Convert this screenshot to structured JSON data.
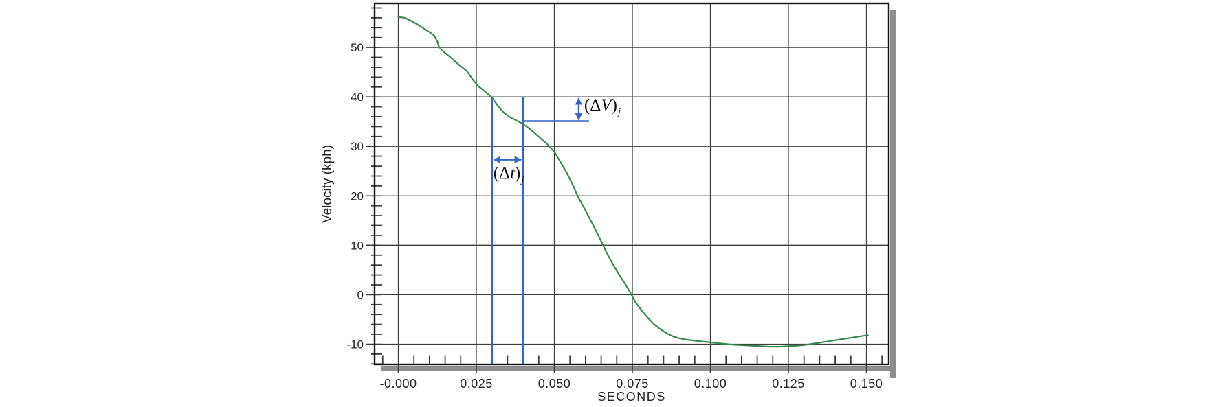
{
  "chart_data": {
    "type": "line",
    "title": "",
    "xlabel": "SECONDS",
    "ylabel": "Velocity (kph)",
    "x_tick_labels": [
      "-0.000",
      "0.025",
      "0.050",
      "0.075",
      "0.100",
      "0.125",
      "0.150"
    ],
    "x_tick_values": [
      0,
      0.025,
      0.05,
      0.075,
      0.1,
      0.125,
      0.15
    ],
    "y_ticks": [
      50,
      40,
      30,
      20,
      10,
      0,
      -10
    ],
    "xlim": [
      -0.0076,
      0.15716
    ],
    "ylim": [
      -14.1,
      58.9
    ],
    "x_minor_step": 0.005,
    "y_minor_step": 2,
    "grid": "on",
    "legend": "none",
    "series": [
      {
        "name": "velocity-curve",
        "color": "#35894a",
        "points": [
          [
            0.0,
            56.2
          ],
          [
            0.002,
            56.0
          ],
          [
            0.004,
            55.4
          ],
          [
            0.006,
            54.7
          ],
          [
            0.008,
            53.9
          ],
          [
            0.01,
            53.1
          ],
          [
            0.0115,
            52.4
          ],
          [
            0.0125,
            51.2
          ],
          [
            0.013,
            50.2
          ],
          [
            0.014,
            49.4
          ],
          [
            0.016,
            48.4
          ],
          [
            0.018,
            47.3
          ],
          [
            0.02,
            46.2
          ],
          [
            0.022,
            45.2
          ],
          [
            0.024,
            43.4
          ],
          [
            0.0255,
            42.2
          ],
          [
            0.027,
            41.5
          ],
          [
            0.0285,
            40.7
          ],
          [
            0.03,
            39.9
          ],
          [
            0.032,
            38.1
          ],
          [
            0.034,
            36.7
          ],
          [
            0.036,
            35.8
          ],
          [
            0.038,
            35.2
          ],
          [
            0.04,
            34.5
          ],
          [
            0.042,
            33.6
          ],
          [
            0.044,
            32.5
          ],
          [
            0.046,
            31.4
          ],
          [
            0.048,
            30.3
          ],
          [
            0.05,
            28.9
          ],
          [
            0.052,
            26.8
          ],
          [
            0.054,
            24.6
          ],
          [
            0.056,
            22.1
          ],
          [
            0.0574,
            20.0
          ],
          [
            0.059,
            18.2
          ],
          [
            0.061,
            15.8
          ],
          [
            0.063,
            13.4
          ],
          [
            0.065,
            10.8
          ],
          [
            0.067,
            8.2
          ],
          [
            0.069,
            5.9
          ],
          [
            0.071,
            3.8
          ],
          [
            0.073,
            1.9
          ],
          [
            0.0747,
            0.0
          ],
          [
            0.076,
            -1.5
          ],
          [
            0.078,
            -3.2
          ],
          [
            0.08,
            -4.7
          ],
          [
            0.082,
            -6.0
          ],
          [
            0.084,
            -7.0
          ],
          [
            0.086,
            -7.8
          ],
          [
            0.088,
            -8.4
          ],
          [
            0.09,
            -8.8
          ],
          [
            0.0925,
            -9.1
          ],
          [
            0.095,
            -9.3
          ],
          [
            0.098,
            -9.5
          ],
          [
            0.101,
            -9.7
          ],
          [
            0.104,
            -9.9
          ],
          [
            0.107,
            -10.1
          ],
          [
            0.11,
            -10.2
          ],
          [
            0.113,
            -10.3
          ],
          [
            0.116,
            -10.4
          ],
          [
            0.119,
            -10.5
          ],
          [
            0.122,
            -10.5
          ],
          [
            0.125,
            -10.4
          ],
          [
            0.128,
            -10.3
          ],
          [
            0.131,
            -10.1
          ],
          [
            0.134,
            -9.8
          ],
          [
            0.137,
            -9.5
          ],
          [
            0.14,
            -9.2
          ],
          [
            0.143,
            -8.9
          ],
          [
            0.146,
            -8.6
          ],
          [
            0.149,
            -8.3
          ],
          [
            0.1505,
            -8.2
          ]
        ]
      }
    ],
    "annotations": {
      "color": "#3465c8",
      "vline1_t": 0.03,
      "vline2_t": 0.04,
      "vline_top_v": 40,
      "hline_v": 35.1,
      "hline_t_start": 0.04,
      "hline_t_end": 0.0611,
      "v_arrow_t": 0.0578,
      "h_arrow_v": 27.3,
      "dv_label": {
        "pre": "(Δ",
        "sym": "V",
        "post": ")",
        "sub": "j"
      },
      "dt_label": {
        "pre": "(Δ",
        "sym": "t",
        "post": ")",
        "sub": "j"
      }
    }
  },
  "colors": {
    "background": "#ffffff",
    "grid": "#3d3d3d",
    "frame": "#151515",
    "shadow": "#8e8e8e",
    "tick_text": "#242424",
    "curve": "#35894a",
    "annotation": "#3465c8"
  }
}
